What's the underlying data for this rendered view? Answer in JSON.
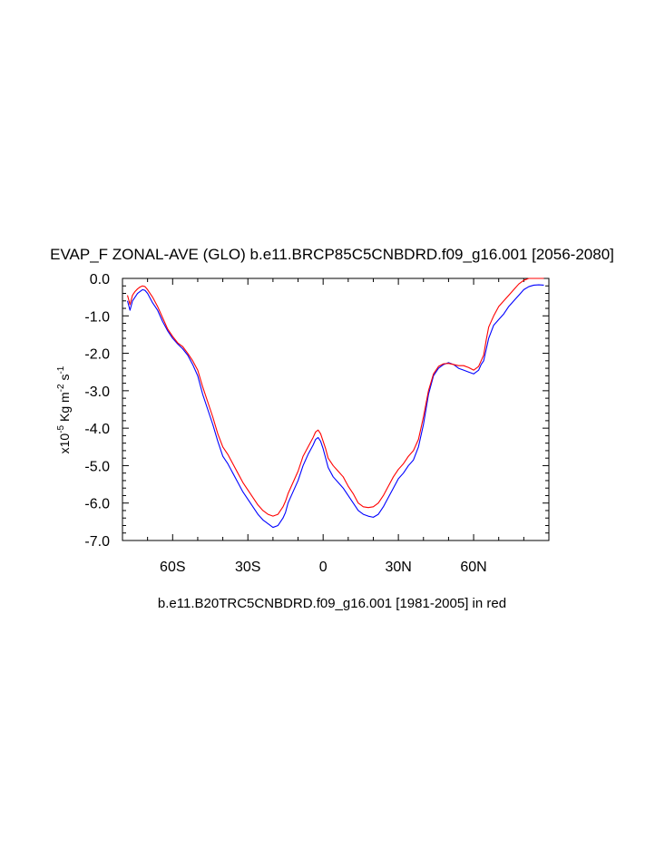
{
  "chart_data": {
    "type": "line",
    "title": "EVAP_F ZONAL-AVE (GLO) b.e11.BRCP85C5CNBDRD.f09_g16.001 [2056-2080]",
    "subtitle": "b.e11.B20TRC5CNBDRD.f09_g16.001 [1981-2005] in red",
    "ylabel": {
      "prefix": "x10",
      "prefix_exp": "-5",
      "unit_main": " Kg m",
      "unit_exp1": "-2",
      "unit_mid": " s",
      "unit_exp2": "-1"
    },
    "xlim": [
      -80,
      90
    ],
    "ylim": [
      -7.0,
      0.0
    ],
    "x_ticks": [
      {
        "value": -60,
        "label": "60S"
      },
      {
        "value": -30,
        "label": "30S"
      },
      {
        "value": 0,
        "label": "0"
      },
      {
        "value": 30,
        "label": "30N"
      },
      {
        "value": 60,
        "label": "60N"
      }
    ],
    "y_ticks": [
      {
        "value": 0.0,
        "label": "0.0"
      },
      {
        "value": -1.0,
        "label": "-1.0"
      },
      {
        "value": -2.0,
        "label": "-2.0"
      },
      {
        "value": -3.0,
        "label": "-3.0"
      },
      {
        "value": -4.0,
        "label": "-4.0"
      },
      {
        "value": -5.0,
        "label": "-5.0"
      },
      {
        "value": -6.0,
        "label": "-6.0"
      },
      {
        "value": -7.0,
        "label": "-7.0"
      }
    ],
    "grid": false,
    "series": [
      {
        "color": "#0000ff",
        "x": [
          -78,
          -77,
          -76,
          -75,
          -74,
          -73,
          -72,
          -71,
          -70,
          -68,
          -66,
          -64,
          -62,
          -60,
          -58,
          -56,
          -54,
          -52,
          -50,
          -48,
          -46,
          -44,
          -42,
          -40,
          -38,
          -36,
          -34,
          -32,
          -30,
          -28,
          -26,
          -24,
          -22,
          -20,
          -18,
          -16,
          -15,
          -14,
          -12,
          -10,
          -8,
          -6,
          -4,
          -3,
          -2,
          -1,
          0,
          1,
          2,
          4,
          6,
          8,
          10,
          12,
          14,
          16,
          18,
          20,
          22,
          24,
          26,
          28,
          30,
          32,
          34,
          36,
          38,
          40,
          42,
          44,
          46,
          48,
          50,
          52,
          54,
          56,
          58,
          60,
          62,
          63,
          64,
          65,
          66,
          68,
          70,
          72,
          74,
          76,
          78,
          80,
          82,
          84,
          86,
          88
        ],
        "y": [
          -0.6,
          -0.85,
          -0.6,
          -0.5,
          -0.4,
          -0.35,
          -0.3,
          -0.32,
          -0.4,
          -0.65,
          -0.85,
          -1.15,
          -1.4,
          -1.6,
          -1.75,
          -1.88,
          -2.05,
          -2.3,
          -2.6,
          -3.1,
          -3.5,
          -3.9,
          -4.35,
          -4.75,
          -4.95,
          -5.2,
          -5.45,
          -5.7,
          -5.9,
          -6.1,
          -6.3,
          -6.45,
          -6.55,
          -6.65,
          -6.6,
          -6.4,
          -6.25,
          -6.0,
          -5.7,
          -5.4,
          -5.0,
          -4.7,
          -4.45,
          -4.3,
          -4.25,
          -4.35,
          -4.55,
          -4.8,
          -5.05,
          -5.3,
          -5.45,
          -5.6,
          -5.8,
          -6.0,
          -6.2,
          -6.3,
          -6.35,
          -6.38,
          -6.3,
          -6.1,
          -5.85,
          -5.6,
          -5.35,
          -5.2,
          -5.0,
          -4.85,
          -4.5,
          -3.9,
          -3.1,
          -2.6,
          -2.4,
          -2.3,
          -2.25,
          -2.3,
          -2.4,
          -2.45,
          -2.5,
          -2.55,
          -2.45,
          -2.3,
          -2.2,
          -1.9,
          -1.6,
          -1.25,
          -1.1,
          -0.95,
          -0.75,
          -0.6,
          -0.45,
          -0.3,
          -0.22,
          -0.18,
          -0.17,
          -0.18
        ]
      },
      {
        "color": "#ff0000",
        "x": [
          -78,
          -77,
          -76,
          -75,
          -74,
          -73,
          -72,
          -71,
          -70,
          -68,
          -66,
          -64,
          -62,
          -60,
          -58,
          -56,
          -54,
          -52,
          -50,
          -48,
          -46,
          -44,
          -42,
          -40,
          -38,
          -36,
          -34,
          -32,
          -30,
          -28,
          -26,
          -24,
          -22,
          -20,
          -18,
          -16,
          -15,
          -14,
          -12,
          -10,
          -8,
          -6,
          -4,
          -3,
          -2,
          -1,
          0,
          1,
          2,
          4,
          6,
          8,
          10,
          12,
          14,
          16,
          18,
          20,
          22,
          24,
          26,
          28,
          30,
          32,
          34,
          36,
          38,
          40,
          42,
          44,
          46,
          48,
          50,
          52,
          54,
          56,
          58,
          60,
          62,
          63,
          64,
          65,
          66,
          68,
          70,
          72,
          74,
          76,
          78,
          80,
          82,
          84,
          86,
          88
        ],
        "y": [
          -0.45,
          -0.7,
          -0.45,
          -0.35,
          -0.28,
          -0.23,
          -0.2,
          -0.22,
          -0.3,
          -0.5,
          -0.75,
          -1.05,
          -1.35,
          -1.55,
          -1.72,
          -1.82,
          -2.0,
          -2.2,
          -2.45,
          -2.9,
          -3.3,
          -3.7,
          -4.15,
          -4.5,
          -4.7,
          -4.95,
          -5.2,
          -5.45,
          -5.65,
          -5.85,
          -6.05,
          -6.2,
          -6.3,
          -6.35,
          -6.3,
          -6.1,
          -5.95,
          -5.75,
          -5.45,
          -5.15,
          -4.75,
          -4.5,
          -4.25,
          -4.1,
          -4.05,
          -4.15,
          -4.35,
          -4.55,
          -4.8,
          -5.0,
          -5.15,
          -5.3,
          -5.55,
          -5.75,
          -6.0,
          -6.1,
          -6.12,
          -6.1,
          -6.0,
          -5.8,
          -5.55,
          -5.3,
          -5.1,
          -4.95,
          -4.75,
          -4.6,
          -4.3,
          -3.7,
          -3.0,
          -2.55,
          -2.35,
          -2.28,
          -2.27,
          -2.3,
          -2.33,
          -2.33,
          -2.38,
          -2.45,
          -2.35,
          -2.2,
          -2.05,
          -1.65,
          -1.3,
          -1.0,
          -0.75,
          -0.6,
          -0.45,
          -0.3,
          -0.15,
          -0.05,
          0.0,
          0.0,
          0.0,
          0.0
        ]
      }
    ]
  }
}
